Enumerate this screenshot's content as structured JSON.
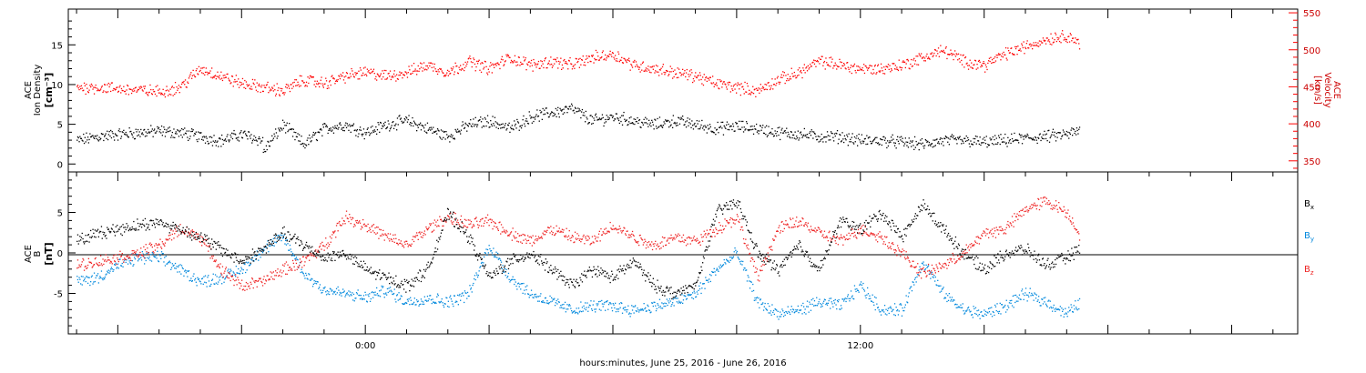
{
  "chart_data": [
    {
      "type": "scatter",
      "panel": "top",
      "x_unit": "hours since 2016-06-25 00:00 UT",
      "xlim": [
        -7.2,
        22.6
      ],
      "ylabel_left": [
        "ACE",
        "Ion Density",
        "[cm⁻³]"
      ],
      "ylabel_right": [
        "ACE",
        "Velocity",
        "[km/s]"
      ],
      "ylim": [
        -1,
        19.5
      ],
      "y2lim": [
        335,
        555
      ],
      "y_ticks": [
        0,
        5,
        10,
        15
      ],
      "y2_ticks": [
        350,
        400,
        450,
        500,
        550
      ],
      "series": [
        {
          "axis": "left",
          "color": "#000000",
          "x": [
            -7,
            -6.5,
            -6,
            -5.5,
            -5,
            -4.5,
            -4,
            -3.5,
            -3,
            -2.5,
            -2.5,
            -2,
            -1.5,
            -1,
            -0.5,
            0,
            0.5,
            1,
            1.5,
            2,
            2.5,
            3,
            3.5,
            4,
            4.5,
            5,
            5.5,
            6,
            6.5,
            7,
            7.5,
            8,
            8.5,
            9,
            9.5,
            10,
            10.5,
            11,
            11.5,
            12,
            12.5,
            13,
            13.5,
            14,
            14.5,
            15,
            15.5,
            16,
            16.5,
            17,
            17.3
          ],
          "y": [
            3.0,
            3.5,
            3.8,
            4.0,
            4.2,
            4.0,
            3.5,
            3.0,
            3.8,
            3.0,
            1.5,
            5.0,
            2.5,
            4.5,
            5.0,
            4.0,
            5.0,
            5.5,
            4.5,
            3.5,
            5.0,
            5.5,
            4.5,
            6.0,
            6.5,
            7.0,
            5.5,
            6.0,
            5.5,
            5.0,
            5.5,
            5.0,
            4.5,
            4.8,
            4.5,
            4.0,
            3.8,
            3.5,
            3.5,
            3.0,
            3.0,
            2.8,
            2.5,
            3.0,
            3.0,
            2.8,
            3.0,
            3.3,
            3.5,
            3.8,
            4.2
          ]
        },
        {
          "axis": "right",
          "color": "#ff0000",
          "x": [
            -7,
            -6.5,
            -6,
            -5.5,
            -5,
            -4.5,
            -4,
            -3.5,
            -3,
            -2.5,
            -2,
            -1.5,
            -1,
            -0.5,
            0,
            0.5,
            1,
            1.5,
            2,
            2.5,
            3,
            3.5,
            4,
            4.5,
            5,
            5.5,
            6,
            6.5,
            7,
            7.5,
            8,
            8.5,
            9,
            9.5,
            10,
            10.5,
            11,
            11.5,
            12,
            12.5,
            13,
            13.5,
            14,
            14.5,
            15,
            15.5,
            16,
            16.5,
            17,
            17.3
          ],
          "y": [
            450,
            450,
            448,
            446,
            444,
            450,
            475,
            465,
            455,
            450,
            445,
            460,
            455,
            465,
            470,
            465,
            470,
            480,
            470,
            485,
            475,
            490,
            480,
            485,
            480,
            490,
            495,
            480,
            475,
            470,
            465,
            455,
            450,
            445,
            460,
            470,
            485,
            480,
            475,
            475,
            480,
            490,
            500,
            485,
            480,
            495,
            505,
            515,
            520,
            510
          ]
        }
      ]
    },
    {
      "type": "scatter",
      "panel": "bottom",
      "x_unit": "hours since 2016-06-25 00:00 UT",
      "xlim": [
        -7.2,
        22.6
      ],
      "ylabel_left": [
        "ACE",
        "B",
        "[nT]"
      ],
      "ylim": [
        -10,
        10
      ],
      "y_ticks": [
        -5,
        0,
        5
      ],
      "xlabel": "hours:minutes, June 25, 2016 - June 26, 2016",
      "x_tick_labels": [
        {
          "x": 0,
          "label": "0:00"
        },
        {
          "x": 12,
          "label": "12:00"
        }
      ],
      "series": [
        {
          "name": "Bx",
          "color": "#000000",
          "x": [
            -7,
            -6.5,
            -6,
            -5.5,
            -5,
            -4.5,
            -4,
            -3.5,
            -3,
            -2.5,
            -2,
            -1.5,
            -1,
            -0.5,
            0,
            0.5,
            1,
            1.5,
            2,
            2.5,
            3,
            3.5,
            4,
            4.5,
            5,
            5.5,
            6,
            6.5,
            7,
            7.5,
            8,
            8.5,
            9,
            9.5,
            10,
            10.5,
            11,
            11.5,
            12,
            12.5,
            13,
            13.5,
            14,
            14.5,
            15,
            15.5,
            16,
            16.5,
            17,
            17.3
          ],
          "y": [
            1.5,
            2.5,
            3.0,
            3.5,
            3.8,
            3.0,
            2.0,
            0.5,
            -1.0,
            0.5,
            2.5,
            1.0,
            -0.5,
            0.0,
            -2.0,
            -3.0,
            -4.0,
            -2.0,
            5.0,
            2.0,
            -3.0,
            -1.0,
            0.0,
            -2.0,
            -4.0,
            -2.0,
            -3.0,
            -1.0,
            -4.0,
            -5.0,
            -4.0,
            5.0,
            6.5,
            0.0,
            -2.0,
            1.0,
            -2.0,
            4.0,
            3.0,
            5.0,
            2.0,
            6.0,
            3.0,
            0.0,
            -2.0,
            0.0,
            0.5,
            -1.5,
            -0.5,
            0.5
          ]
        },
        {
          "name": "By",
          "color": "#0088dd",
          "x": [
            -7,
            -6.5,
            -6,
            -5.5,
            -5,
            -4.5,
            -4,
            -3.5,
            -3,
            -2.5,
            -2,
            -1.5,
            -1,
            -0.5,
            0,
            0.5,
            1,
            1.5,
            2,
            2.5,
            3,
            3.5,
            4,
            4.5,
            5,
            5.5,
            6,
            6.5,
            7,
            7.5,
            8,
            8.5,
            9,
            9.5,
            10,
            10.5,
            11,
            11.5,
            12,
            12.5,
            13,
            13.5,
            14,
            14.5,
            15,
            15.5,
            16,
            16.5,
            17,
            17.3
          ],
          "y": [
            -3.5,
            -3.0,
            -1.5,
            -0.5,
            -0.5,
            -2.0,
            -3.5,
            -3.0,
            -2.0,
            0.5,
            2.0,
            -2.5,
            -4.5,
            -5.0,
            -5.5,
            -4.5,
            -6.0,
            -5.5,
            -6.0,
            -5.0,
            1.0,
            -3.0,
            -5.0,
            -6.0,
            -7.0,
            -6.5,
            -6.5,
            -7.0,
            -6.5,
            -6.0,
            -5.0,
            -2.0,
            0.0,
            -6.0,
            -7.5,
            -7.0,
            -6.0,
            -6.5,
            -4.0,
            -7.0,
            -7.0,
            -1.0,
            -5.0,
            -7.0,
            -7.5,
            -6.5,
            -5.0,
            -6.0,
            -7.5,
            -6.0
          ]
        },
        {
          "name": "Bz",
          "color": "#ee2222",
          "x": [
            -7,
            -6.5,
            -6,
            -5.5,
            -5,
            -4.5,
            -4,
            -3.5,
            -3,
            -2.5,
            -2,
            -1.5,
            -1,
            -0.5,
            0,
            0.5,
            1,
            1.5,
            2,
            2.5,
            3,
            3.5,
            4,
            4.5,
            5,
            5.5,
            6,
            6.5,
            7,
            7.5,
            8,
            8.5,
            9,
            9.5,
            10,
            10.5,
            11,
            11.5,
            12,
            12.5,
            13,
            13.5,
            14,
            14.5,
            15,
            15.5,
            16,
            16.5,
            17,
            17.3
          ],
          "y": [
            -1.5,
            -1.0,
            -0.5,
            0.0,
            1.0,
            3.0,
            2.0,
            -2.0,
            -4.0,
            -3.5,
            -2.0,
            -1.0,
            1.0,
            4.5,
            3.5,
            2.0,
            1.0,
            3.0,
            4.5,
            3.5,
            4.0,
            2.5,
            1.5,
            3.0,
            2.0,
            1.5,
            3.5,
            2.0,
            1.0,
            2.0,
            1.5,
            3.0,
            4.5,
            -3.0,
            3.0,
            4.0,
            2.5,
            1.5,
            3.0,
            2.0,
            0.0,
            -2.5,
            -1.5,
            0.0,
            2.5,
            3.0,
            5.5,
            6.5,
            5.0,
            2.5
          ]
        }
      ]
    }
  ],
  "legend": {
    "bx_base": "B",
    "bx_sub": "x",
    "by_base": "B",
    "by_sub": "y",
    "bz_base": "B",
    "bz_sub": "z"
  }
}
